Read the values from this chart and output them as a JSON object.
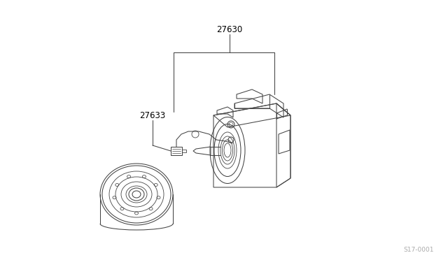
{
  "bg_color": "#ffffff",
  "line_color": "#444444",
  "label_27630": "27630",
  "label_27633": "27633",
  "watermark": "S17-0001",
  "label_fontsize": 8.5,
  "watermark_fontsize": 6.5
}
